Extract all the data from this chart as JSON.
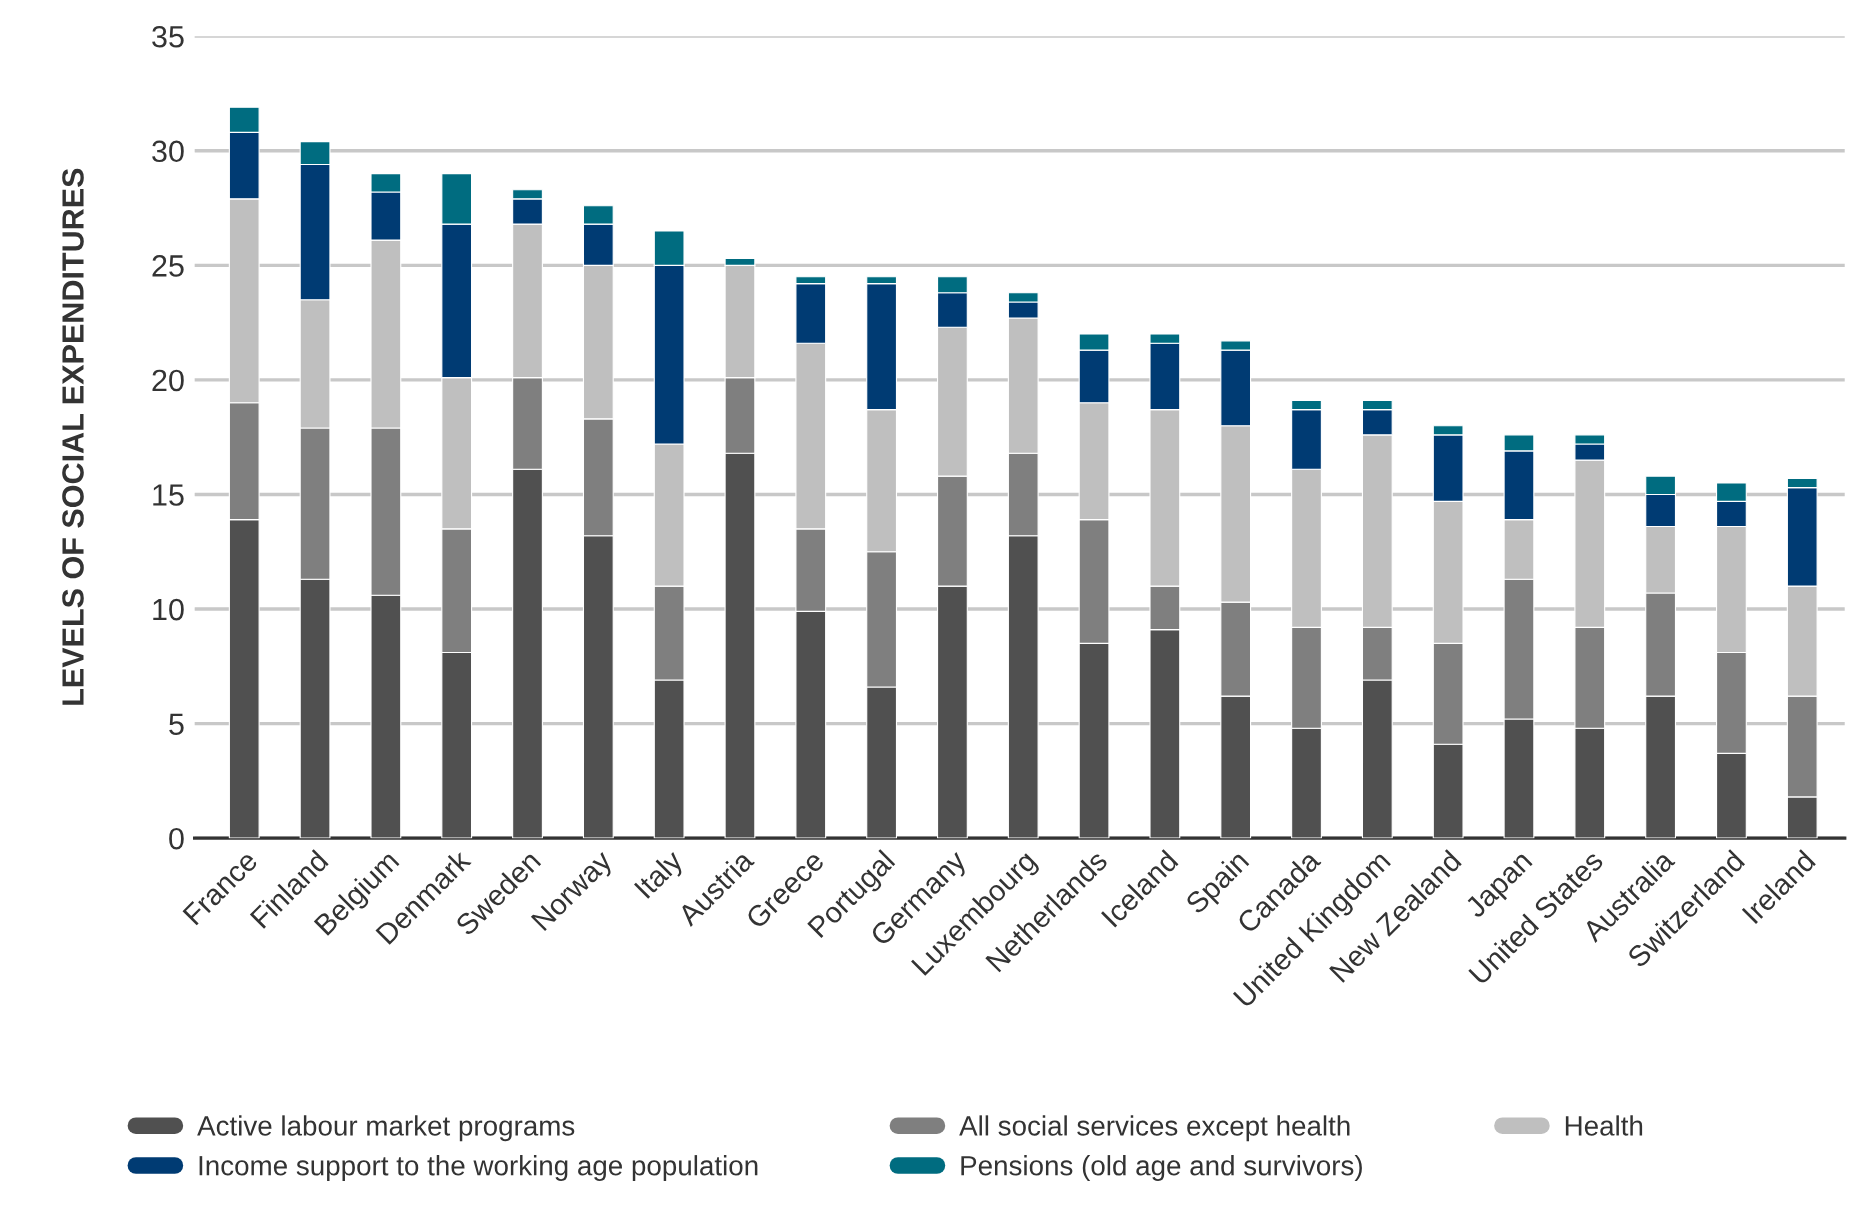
{
  "chart_data": {
    "type": "bar",
    "stacked": true,
    "ylabel": "LEVELS OF SOCIAL EXPENDITURES",
    "categories": [
      "France",
      "Finland",
      "Belgium",
      "Denmark",
      "Sweden",
      "Norway",
      "Italy",
      "Austria",
      "Greece",
      "Portugal",
      "Germany",
      "Luxembourg",
      "Netherlands",
      "Iceland",
      "Spain",
      "Canada",
      "United Kingdom",
      "New Zealand",
      "Japan",
      "United States",
      "Australia",
      "Switzerland",
      "Ireland"
    ],
    "series": [
      {
        "name": "Active labour market programs",
        "color": "#505050",
        "values": [
          13.9,
          11.3,
          10.6,
          8.1,
          16.1,
          13.2,
          6.9,
          16.8,
          9.9,
          6.6,
          11.0,
          13.2,
          8.5,
          9.1,
          6.2,
          4.8,
          6.9,
          4.1,
          5.2,
          4.8,
          6.2,
          3.7,
          1.8
        ]
      },
      {
        "name": "All social services except health",
        "color": "#7f7f7f",
        "values": [
          5.1,
          6.6,
          7.3,
          5.4,
          4.0,
          5.1,
          4.1,
          3.3,
          3.6,
          5.9,
          4.8,
          3.6,
          5.4,
          1.9,
          4.1,
          4.4,
          2.3,
          4.4,
          6.1,
          4.4,
          4.5,
          4.4,
          4.4
        ]
      },
      {
        "name": "Health",
        "color": "#bfbfbf",
        "values": [
          8.9,
          5.6,
          8.2,
          6.6,
          6.7,
          6.7,
          6.2,
          4.9,
          8.1,
          6.2,
          6.5,
          5.9,
          5.1,
          7.7,
          7.7,
          6.9,
          8.4,
          6.2,
          2.6,
          7.3,
          2.9,
          5.5,
          4.8
        ]
      },
      {
        "name": "Income support to the working age population",
        "color": "#003b73",
        "values": [
          2.9,
          5.9,
          2.1,
          6.7,
          1.1,
          1.8,
          7.8,
          0,
          2.6,
          5.5,
          1.5,
          0.7,
          2.3,
          2.9,
          3.3,
          2.6,
          1.1,
          2.9,
          3.0,
          0.7,
          1.4,
          1.1,
          4.3
        ]
      },
      {
        "name": "Pensions (old age and survivors)",
        "color": "#006c80",
        "values": [
          1.1,
          1.0,
          0.8,
          2.2,
          0.4,
          0.8,
          1.5,
          0.3,
          0.3,
          0.3,
          0.7,
          0.4,
          0.7,
          0.4,
          0.4,
          0.4,
          0.4,
          0.4,
          0.7,
          0.4,
          0.8,
          0.8,
          0.4
        ]
      }
    ],
    "ylim": [
      0,
      35
    ],
    "yticks": [
      0,
      5,
      10,
      15,
      20,
      25,
      30,
      35
    ],
    "grid": "y",
    "legend": "bottom"
  }
}
